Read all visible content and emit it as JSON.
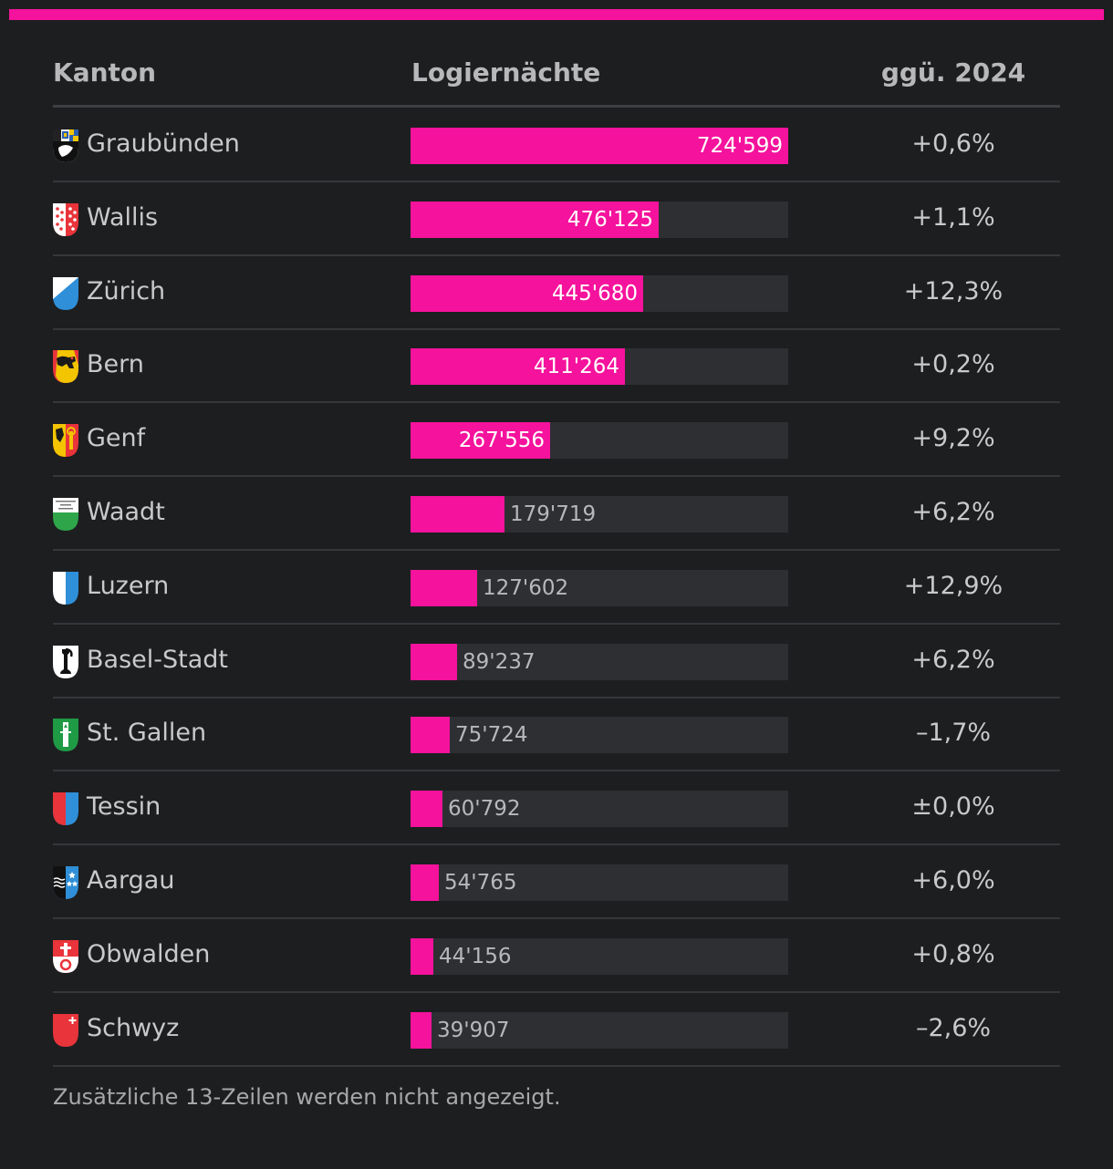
{
  "header": {
    "kanton": "Kanton",
    "value": "Logiernächte",
    "change": "ggü. 2024"
  },
  "colors": {
    "accent": "#f5129c",
    "track": "#2e2f33",
    "background": "#1d1e20"
  },
  "chart_data": {
    "type": "bar",
    "xlabel": "Logiernächte",
    "ylabel": "Kanton",
    "xlim": [
      0,
      724599
    ],
    "categories": [
      "Graubünden",
      "Wallis",
      "Zürich",
      "Bern",
      "Genf",
      "Waadt",
      "Luzern",
      "Basel-Stadt",
      "St. Gallen",
      "Tessin",
      "Aargau",
      "Obwalden",
      "Schwyz"
    ],
    "values": [
      724599,
      476125,
      445680,
      411264,
      267556,
      179719,
      127602,
      89237,
      75724,
      60792,
      54765,
      44156,
      39907
    ],
    "rows": [
      {
        "kanton": "Graubünden",
        "icon": "graubuenden-flag-icon",
        "value": 724599,
        "value_label": "724'599",
        "change": "+0,6%"
      },
      {
        "kanton": "Wallis",
        "icon": "wallis-flag-icon",
        "value": 476125,
        "value_label": "476'125",
        "change": "+1,1%"
      },
      {
        "kanton": "Zürich",
        "icon": "zuerich-flag-icon",
        "value": 445680,
        "value_label": "445'680",
        "change": "+12,3%"
      },
      {
        "kanton": "Bern",
        "icon": "bern-flag-icon",
        "value": 411264,
        "value_label": "411'264",
        "change": "+0,2%"
      },
      {
        "kanton": "Genf",
        "icon": "genf-flag-icon",
        "value": 267556,
        "value_label": "267'556",
        "change": "+9,2%"
      },
      {
        "kanton": "Waadt",
        "icon": "waadt-flag-icon",
        "value": 179719,
        "value_label": "179'719",
        "change": "+6,2%"
      },
      {
        "kanton": "Luzern",
        "icon": "luzern-flag-icon",
        "value": 127602,
        "value_label": "127'602",
        "change": "+12,9%"
      },
      {
        "kanton": "Basel-Stadt",
        "icon": "basel-stadt-flag-icon",
        "value": 89237,
        "value_label": "89'237",
        "change": "+6,2%"
      },
      {
        "kanton": "St. Gallen",
        "icon": "st-gallen-flag-icon",
        "value": 75724,
        "value_label": "75'724",
        "change": "–1,7%"
      },
      {
        "kanton": "Tessin",
        "icon": "tessin-flag-icon",
        "value": 60792,
        "value_label": "60'792",
        "change": "±0,0%"
      },
      {
        "kanton": "Aargau",
        "icon": "aargau-flag-icon",
        "value": 54765,
        "value_label": "54'765",
        "change": "+6,0%"
      },
      {
        "kanton": "Obwalden",
        "icon": "obwalden-flag-icon",
        "value": 44156,
        "value_label": "44'156",
        "change": "+0,8%"
      },
      {
        "kanton": "Schwyz",
        "icon": "schwyz-flag-icon",
        "value": 39907,
        "value_label": "39'907",
        "change": "–2,6%"
      }
    ]
  },
  "footer": {
    "note": "Zusätzliche 13-Zeilen werden nicht angezeigt."
  }
}
